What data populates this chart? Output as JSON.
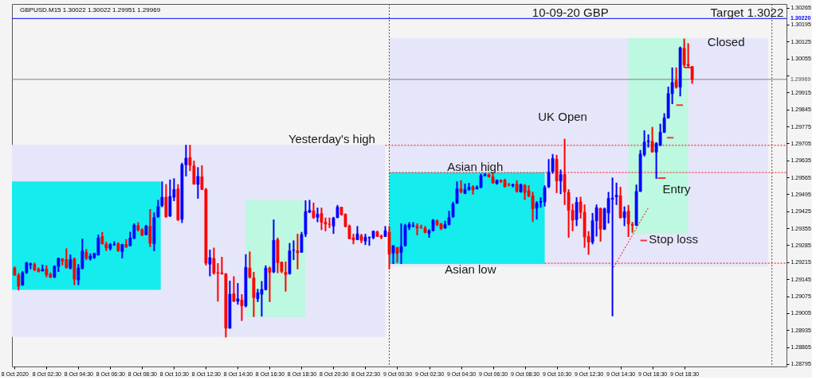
{
  "chart_data": {
    "type": "candlestick",
    "title": "GBPUSD.M15 1.30022 1.30022 1.29951 1.29969",
    "x": [
      "2020-10-08T00:30",
      "2020-10-08T00:45",
      "2020-10-08T01:00",
      "2020-10-08T01:15",
      "2020-10-08T01:30",
      "2020-10-08T01:45",
      "2020-10-08T02:00",
      "2020-10-08T02:15",
      "2020-10-08T02:30",
      "2020-10-08T02:45",
      "2020-10-08T03:00",
      "2020-10-08T03:15",
      "2020-10-08T03:30",
      "2020-10-08T03:45",
      "2020-10-08T04:00",
      "2020-10-08T04:15",
      "2020-10-08T04:30",
      "2020-10-08T04:45",
      "2020-10-08T05:00",
      "2020-10-08T05:15",
      "2020-10-08T05:30",
      "2020-10-08T05:45",
      "2020-10-08T06:00",
      "2020-10-08T06:15",
      "2020-10-08T06:30",
      "2020-10-08T06:45",
      "2020-10-08T07:00",
      "2020-10-08T07:15",
      "2020-10-08T07:30",
      "2020-10-08T07:45",
      "2020-10-08T08:00",
      "2020-10-08T08:15",
      "2020-10-08T08:30",
      "2020-10-08T08:45",
      "2020-10-08T09:00",
      "2020-10-08T09:15",
      "2020-10-08T09:30",
      "2020-10-08T09:45",
      "2020-10-08T10:00",
      "2020-10-08T10:15",
      "2020-10-08T10:30",
      "2020-10-08T10:45",
      "2020-10-08T11:00",
      "2020-10-08T11:15",
      "2020-10-08T11:30",
      "2020-10-08T11:45",
      "2020-10-08T12:00",
      "2020-10-08T12:15",
      "2020-10-08T12:30",
      "2020-10-08T12:45",
      "2020-10-08T13:00",
      "2020-10-08T13:15",
      "2020-10-08T13:30",
      "2020-10-08T13:45",
      "2020-10-08T14:00",
      "2020-10-08T14:15",
      "2020-10-08T14:30",
      "2020-10-08T14:45",
      "2020-10-08T15:00",
      "2020-10-08T15:15",
      "2020-10-08T15:30",
      "2020-10-08T15:45",
      "2020-10-08T16:00",
      "2020-10-08T16:15",
      "2020-10-08T16:30",
      "2020-10-08T16:45",
      "2020-10-08T17:00",
      "2020-10-08T17:15",
      "2020-10-08T17:30",
      "2020-10-08T17:45",
      "2020-10-08T18:00",
      "2020-10-08T18:15",
      "2020-10-08T18:30",
      "2020-10-08T18:45",
      "2020-10-08T19:00",
      "2020-10-08T19:15",
      "2020-10-08T19:30",
      "2020-10-08T19:45",
      "2020-10-08T20:00",
      "2020-10-08T20:15",
      "2020-10-08T20:30",
      "2020-10-08T20:45",
      "2020-10-08T21:00",
      "2020-10-08T21:15",
      "2020-10-08T21:30",
      "2020-10-08T21:45",
      "2020-10-08T22:00",
      "2020-10-08T22:15",
      "2020-10-08T22:30",
      "2020-10-08T22:45",
      "2020-10-08T23:00",
      "2020-10-08T23:15",
      "2020-10-08T23:30",
      "2020-10-08T23:45",
      "2020-10-09T00:00",
      "2020-10-09T00:15",
      "2020-10-09T00:30",
      "2020-10-09T00:45",
      "2020-10-09T01:00",
      "2020-10-09T01:15",
      "2020-10-09T01:30",
      "2020-10-09T01:45",
      "2020-10-09T02:00",
      "2020-10-09T02:15",
      "2020-10-09T02:30",
      "2020-10-09T02:45",
      "2020-10-09T03:00",
      "2020-10-09T03:15",
      "2020-10-09T03:30",
      "2020-10-09T03:45",
      "2020-10-09T04:00",
      "2020-10-09T04:15",
      "2020-10-09T04:30",
      "2020-10-09T04:45",
      "2020-10-09T05:00",
      "2020-10-09T05:15",
      "2020-10-09T05:30",
      "2020-10-09T05:45",
      "2020-10-09T06:00",
      "2020-10-09T06:15",
      "2020-10-09T06:30",
      "2020-10-09T06:45",
      "2020-10-09T07:00",
      "2020-10-09T07:15",
      "2020-10-09T07:30",
      "2020-10-09T07:45",
      "2020-10-09T08:00",
      "2020-10-09T08:15",
      "2020-10-09T08:30",
      "2020-10-09T08:45",
      "2020-10-09T09:00",
      "2020-10-09T09:15",
      "2020-10-09T09:30",
      "2020-10-09T09:45",
      "2020-10-09T10:00",
      "2020-10-09T10:15",
      "2020-10-09T10:30",
      "2020-10-09T10:45",
      "2020-10-09T11:00",
      "2020-10-09T11:15",
      "2020-10-09T11:30",
      "2020-10-09T11:45",
      "2020-10-09T12:00",
      "2020-10-09T12:15",
      "2020-10-09T12:30",
      "2020-10-09T12:45",
      "2020-10-09T13:00",
      "2020-10-09T13:15",
      "2020-10-09T13:30",
      "2020-10-09T13:45",
      "2020-10-09T14:00",
      "2020-10-09T14:15",
      "2020-10-09T14:30",
      "2020-10-09T14:45",
      "2020-10-09T15:00",
      "2020-10-09T15:15",
      "2020-10-09T15:30",
      "2020-10-09T15:45",
      "2020-10-09T16:00",
      "2020-10-09T16:15",
      "2020-10-09T16:30",
      "2020-10-09T16:45",
      "2020-10-09T17:00",
      "2020-10-09T17:15",
      "2020-10-09T17:30",
      "2020-10-09T17:45",
      "2020-10-09T18:00",
      "2020-10-09T18:15",
      "2020-10-09T18:30",
      "2020-10-09T18:45",
      "2020-10-09T19:00"
    ],
    "ohlc": [
      [
        1.29191,
        1.29197,
        1.29159,
        1.29162
      ],
      [
        1.29161,
        1.2917,
        1.29099,
        1.29116
      ],
      [
        1.29121,
        1.29178,
        1.29118,
        1.29172
      ],
      [
        1.29173,
        1.29216,
        1.29167,
        1.29213
      ],
      [
        1.29204,
        1.29213,
        1.29186,
        1.29209
      ],
      [
        1.29206,
        1.29213,
        1.29178,
        1.29184
      ],
      [
        1.29186,
        1.29193,
        1.29173,
        1.29177
      ],
      [
        1.29179,
        1.29205,
        1.29177,
        1.29185
      ],
      [
        1.29187,
        1.29202,
        1.29153,
        1.29163
      ],
      [
        1.29165,
        1.29172,
        1.2915,
        1.29153
      ],
      [
        1.29153,
        1.29202,
        1.2915,
        1.29198
      ],
      [
        1.29197,
        1.29234,
        1.29175,
        1.29231
      ],
      [
        1.29228,
        1.29232,
        1.29202,
        1.2922
      ],
      [
        1.29226,
        1.29272,
        1.29189,
        1.29193
      ],
      [
        1.2919,
        1.29247,
        1.29186,
        1.29227
      ],
      [
        1.29229,
        1.29234,
        1.29121,
        1.29145
      ],
      [
        1.29142,
        1.29207,
        1.29121,
        1.29191
      ],
      [
        1.29189,
        1.29312,
        1.29186,
        1.29261
      ],
      [
        1.29256,
        1.29269,
        1.29224,
        1.29231
      ],
      [
        1.29229,
        1.29251,
        1.29222,
        1.2924
      ],
      [
        1.29234,
        1.29254,
        1.29229,
        1.29251
      ],
      [
        1.29245,
        1.29329,
        1.29243,
        1.29315
      ],
      [
        1.29321,
        1.29339,
        1.29288,
        1.29291
      ],
      [
        1.29289,
        1.29299,
        1.29261,
        1.29274
      ],
      [
        1.29272,
        1.29294,
        1.29264,
        1.29288
      ],
      [
        1.29287,
        1.29301,
        1.29283,
        1.29288
      ],
      [
        1.29291,
        1.29297,
        1.29258,
        1.29262
      ],
      [
        1.29259,
        1.29291,
        1.29231,
        1.29288
      ],
      [
        1.29288,
        1.2931,
        1.29274,
        1.29278
      ],
      [
        1.29283,
        1.2934,
        1.2928,
        1.29315
      ],
      [
        1.29314,
        1.29375,
        1.2931,
        1.29368
      ],
      [
        1.29366,
        1.2938,
        1.29342,
        1.29348
      ],
      [
        1.29349,
        1.29355,
        1.29323,
        1.29326
      ],
      [
        1.29328,
        1.29369,
        1.29326,
        1.29364
      ],
      [
        1.29364,
        1.29434,
        1.29278,
        1.29293
      ],
      [
        1.29291,
        1.2942,
        1.29261,
        1.29399
      ],
      [
        1.29402,
        1.29472,
        1.29399,
        1.29444
      ],
      [
        1.29448,
        1.29548,
        1.29442,
        1.29483
      ],
      [
        1.29483,
        1.29537,
        1.29399,
        1.29402
      ],
      [
        1.29405,
        1.29556,
        1.29402,
        1.29486
      ],
      [
        1.29483,
        1.29561,
        1.29467,
        1.29515
      ],
      [
        1.29517,
        1.29537,
        1.29386,
        1.29389
      ],
      [
        1.29392,
        1.29625,
        1.29377,
        1.29617
      ],
      [
        1.29617,
        1.29699,
        1.29569,
        1.29644
      ],
      [
        1.29647,
        1.29699,
        1.29591,
        1.29615
      ],
      [
        1.29612,
        1.29634,
        1.29535,
        1.29537
      ],
      [
        1.29536,
        1.29607,
        1.29477,
        1.29569
      ],
      [
        1.29567,
        1.29615,
        1.29513,
        1.29515
      ],
      [
        1.29515,
        1.29521,
        1.29202,
        1.29211
      ],
      [
        1.29207,
        1.29267,
        1.29157,
        1.29234
      ],
      [
        1.29231,
        1.29275,
        1.29164,
        1.2917
      ],
      [
        1.29172,
        1.29211,
        1.29053,
        1.2917
      ],
      [
        1.29171,
        1.29237,
        1.29164,
        1.29167
      ],
      [
        1.29167,
        1.2917,
        1.28905,
        1.28943
      ],
      [
        1.28943,
        1.29139,
        1.28941,
        1.29083
      ],
      [
        1.29085,
        1.29157,
        1.29051,
        1.29054
      ],
      [
        1.29054,
        1.29129,
        1.2904,
        1.29064
      ],
      [
        1.29059,
        1.29083,
        1.28973,
        1.29035
      ],
      [
        1.29035,
        1.29248,
        1.29029,
        1.29194
      ],
      [
        1.29191,
        1.29259,
        1.29148,
        1.29153
      ],
      [
        1.2915,
        1.29175,
        1.28989,
        1.29069
      ],
      [
        1.29064,
        1.29105,
        1.29051,
        1.29089
      ],
      [
        1.29083,
        1.29137,
        1.28991,
        1.29103
      ],
      [
        1.29102,
        1.29202,
        1.29099,
        1.29191
      ],
      [
        1.29191,
        1.29197,
        1.29051,
        1.29173
      ],
      [
        1.29175,
        1.29391,
        1.2917,
        1.29305
      ],
      [
        1.29308,
        1.29316,
        1.2917,
        1.29213
      ],
      [
        1.29215,
        1.29218,
        1.2917,
        1.29177
      ],
      [
        1.29173,
        1.29218,
        1.29094,
        1.29164
      ],
      [
        1.29168,
        1.29294,
        1.29164,
        1.29262
      ],
      [
        1.29264,
        1.29305,
        1.29224,
        1.29265
      ],
      [
        1.29262,
        1.29332,
        1.29186,
        1.29254
      ],
      [
        1.29256,
        1.2934,
        1.29254,
        1.29329
      ],
      [
        1.2933,
        1.2947,
        1.29319,
        1.29424
      ],
      [
        1.29421,
        1.29472,
        1.29418,
        1.29429
      ],
      [
        1.29427,
        1.29461,
        1.29394,
        1.29399
      ],
      [
        1.294,
        1.2944,
        1.2938,
        1.29413
      ],
      [
        1.29416,
        1.2944,
        1.29348,
        1.2938
      ],
      [
        1.2938,
        1.29399,
        1.29343,
        1.29373
      ],
      [
        1.29372,
        1.29399,
        1.29356,
        1.29371
      ],
      [
        1.29364,
        1.29402,
        1.29332,
        1.29397
      ],
      [
        1.29399,
        1.29451,
        1.29397,
        1.29442
      ],
      [
        1.29442,
        1.29444,
        1.29407,
        1.29411
      ],
      [
        1.29413,
        1.29416,
        1.29359,
        1.29362
      ],
      [
        1.29364,
        1.2937,
        1.2931,
        1.29312
      ],
      [
        1.29316,
        1.29332,
        1.29289,
        1.29307
      ],
      [
        1.29308,
        1.29364,
        1.29306,
        1.29332
      ],
      [
        1.29324,
        1.29332,
        1.29294,
        1.29305
      ],
      [
        1.29302,
        1.29332,
        1.29286,
        1.29318
      ],
      [
        1.29316,
        1.29321,
        1.29283,
        1.29317
      ],
      [
        1.29316,
        1.29345,
        1.2931,
        1.29343
      ],
      [
        1.2934,
        1.29345,
        1.29319,
        1.29321
      ],
      [
        1.29323,
        1.29329,
        1.2931,
        1.29318
      ],
      [
        1.29321,
        1.29364,
        1.29319,
        1.29345
      ],
      [
        1.29339,
        1.29364,
        1.29186,
        1.29248
      ],
      [
        1.29253,
        1.29285,
        1.29208,
        1.29283
      ],
      [
        1.29275,
        1.29278,
        1.29213,
        1.29251
      ],
      [
        1.29256,
        1.29375,
        1.29208,
        1.2928
      ],
      [
        1.29283,
        1.29373,
        1.29281,
        1.29366
      ],
      [
        1.29359,
        1.2938,
        1.29348,
        1.29371
      ],
      [
        1.29364,
        1.2938,
        1.29359,
        1.29366
      ],
      [
        1.29364,
        1.29375,
        1.29326,
        1.29356
      ],
      [
        1.29358,
        1.2937,
        1.29353,
        1.29357
      ],
      [
        1.29356,
        1.29364,
        1.29335,
        1.29337
      ],
      [
        1.29335,
        1.29351,
        1.29316,
        1.29345
      ],
      [
        1.29345,
        1.29393,
        1.29343,
        1.29389
      ],
      [
        1.29386,
        1.29391,
        1.29364,
        1.2937
      ],
      [
        1.29373,
        1.29377,
        1.29348,
        1.29353
      ],
      [
        1.29356,
        1.29386,
        1.29353,
        1.2937
      ],
      [
        1.2937,
        1.29427,
        1.29367,
        1.29399
      ],
      [
        1.29402,
        1.29464,
        1.29399,
        1.29456
      ],
      [
        1.29458,
        1.29548,
        1.29456,
        1.29518
      ],
      [
        1.29518,
        1.29553,
        1.29499,
        1.29505
      ],
      [
        1.29499,
        1.29539,
        1.29496,
        1.29515
      ],
      [
        1.29515,
        1.29542,
        1.2951,
        1.29524
      ],
      [
        1.29526,
        1.29532,
        1.29494,
        1.29513
      ],
      [
        1.29518,
        1.29532,
        1.29515,
        1.29524
      ],
      [
        1.29523,
        1.2958,
        1.29521,
        1.29572
      ],
      [
        1.29572,
        1.29582,
        1.29569,
        1.29577
      ],
      [
        1.29577,
        1.2958,
        1.29564,
        1.29567
      ],
      [
        1.29567,
        1.29582,
        1.29539,
        1.29542
      ],
      [
        1.29539,
        1.29556,
        1.29535,
        1.29553
      ],
      [
        1.29553,
        1.29556,
        1.29542,
        1.29548
      ],
      [
        1.29553,
        1.29559,
        1.29524,
        1.29526
      ],
      [
        1.29534,
        1.29542,
        1.29528,
        1.29533
      ],
      [
        1.29531,
        1.29539,
        1.29524,
        1.29535
      ],
      [
        1.29537,
        1.29553,
        1.29502,
        1.29507
      ],
      [
        1.29505,
        1.29539,
        1.29502,
        1.29535
      ],
      [
        1.29532,
        1.29537,
        1.29472,
        1.29502
      ],
      [
        1.2951,
        1.29532,
        1.29483,
        1.29489
      ],
      [
        1.29489,
        1.29505,
        1.29381,
        1.29435
      ],
      [
        1.29438,
        1.29467,
        1.29391,
        1.29458
      ],
      [
        1.29462,
        1.29483,
        1.2944,
        1.29465
      ],
      [
        1.29464,
        1.29532,
        1.29445,
        1.29523
      ],
      [
        1.29526,
        1.2964,
        1.29521,
        1.29586
      ],
      [
        1.29589,
        1.29661,
        1.2958,
        1.29643
      ],
      [
        1.2964,
        1.29658,
        1.295,
        1.2955
      ],
      [
        1.2955,
        1.29597,
        1.29496,
        1.29577
      ],
      [
        1.29577,
        1.29724,
        1.29451,
        1.29505
      ],
      [
        1.29503,
        1.29516,
        1.29316,
        1.29429
      ],
      [
        1.29429,
        1.29456,
        1.29343,
        1.29388
      ],
      [
        1.29391,
        1.29483,
        1.29364,
        1.29462
      ],
      [
        1.29464,
        1.29485,
        1.29395,
        1.29421
      ],
      [
        1.29421,
        1.29453,
        1.29275,
        1.29319
      ],
      [
        1.29321,
        1.29343,
        1.29246,
        1.29298
      ],
      [
        1.29298,
        1.29418,
        1.29289,
        1.29386
      ],
      [
        1.29386,
        1.29453,
        1.29321,
        1.2944
      ],
      [
        1.29437,
        1.2944,
        1.293,
        1.29351
      ],
      [
        1.29351,
        1.2944,
        1.29348,
        1.29435
      ],
      [
        1.29418,
        1.29505,
        1.29375,
        1.29478
      ],
      [
        1.29475,
        1.29564,
        1.28992,
        1.2948
      ],
      [
        1.29485,
        1.29543,
        1.29451,
        1.29491
      ],
      [
        1.29489,
        1.29526,
        1.29395,
        1.29399
      ],
      [
        1.29399,
        1.29445,
        1.29364,
        1.29423
      ],
      [
        1.29426,
        1.29451,
        1.29319,
        1.29373
      ],
      [
        1.2937,
        1.29381,
        1.29337,
        1.29367
      ],
      [
        1.29368,
        1.29535,
        1.29364,
        1.29507
      ],
      [
        1.29507,
        1.29678,
        1.29505,
        1.29661
      ],
      [
        1.29659,
        1.29759,
        1.29651,
        1.2971
      ],
      [
        1.29712,
        1.29742,
        1.29688,
        1.29715
      ],
      [
        1.29713,
        1.29773,
        1.29667,
        1.2967
      ],
      [
        1.29669,
        1.2971,
        1.29559,
        1.29705
      ],
      [
        1.29697,
        1.29786,
        1.29694,
        1.29751
      ],
      [
        1.29751,
        1.29829,
        1.29748,
        1.2981
      ],
      [
        1.2981,
        1.29939,
        1.29807,
        1.2991
      ],
      [
        1.2991,
        1.30018,
        1.29867,
        1.29956
      ],
      [
        1.29964,
        1.30018,
        1.29931,
        1.29937
      ],
      [
        1.29937,
        1.30104,
        1.29899,
        1.30099
      ],
      [
        1.30097,
        1.30137,
        1.30018,
        1.30029
      ],
      [
        1.30031,
        1.30118,
        1.30018,
        1.30026
      ],
      [
        1.30022,
        1.30022,
        1.29951,
        1.29969
      ]
    ],
    "colors": [
      "#ff0000",
      "#ff0000",
      "#0000ff",
      "#0000ff",
      "#0000ff",
      "#ff0000",
      "#ff0000",
      "#0000ff",
      "#ff0000",
      "#ff0000",
      "#0000ff",
      "#0000ff",
      "#ff0000",
      "#ff0000",
      "#0000ff",
      "#ff0000",
      "#0000ff",
      "#0000ff",
      "#ff0000",
      "#0000ff",
      "#0000ff",
      "#0000ff",
      "#ff0000",
      "#ff0000",
      "#0000ff",
      "#0000ff",
      "#ff0000",
      "#0000ff",
      "#ff0000",
      "#0000ff",
      "#0000ff",
      "#ff0000",
      "#ff0000",
      "#0000ff",
      "#ff0000",
      "#0000ff",
      "#0000ff",
      "#0000ff",
      "#ff0000",
      "#0000ff",
      "#0000ff",
      "#ff0000",
      "#0000ff",
      "#0000ff",
      "#ff0000",
      "#ff0000",
      "#0000ff",
      "#ff0000",
      "#ff0000",
      "#0000ff",
      "#ff0000",
      "#ff0000",
      "#ff0000",
      "#ff0000",
      "#0000ff",
      "#ff0000",
      "#0000ff",
      "#ff0000",
      "#0000ff",
      "#ff0000",
      "#ff0000",
      "#0000ff",
      "#0000ff",
      "#0000ff",
      "#ff0000",
      "#0000ff",
      "#ff0000",
      "#ff0000",
      "#ff0000",
      "#0000ff",
      "#0000ff",
      "#ff0000",
      "#0000ff",
      "#0000ff",
      "#0000ff",
      "#ff0000",
      "#0000ff",
      "#ff0000",
      "#ff0000",
      "#ff0000",
      "#0000ff",
      "#0000ff",
      "#ff0000",
      "#ff0000",
      "#ff0000",
      "#ff0000",
      "#0000ff",
      "#ff0000",
      "#0000ff",
      "#0000ff",
      "#0000ff",
      "#ff0000",
      "#ff0000",
      "#0000ff",
      "#ff0000",
      "#0000ff",
      "#ff0000",
      "#0000ff",
      "#0000ff",
      "#0000ff",
      "#0000ff",
      "#ff0000",
      "#ff0000",
      "#ff0000",
      "#0000ff",
      "#0000ff",
      "#ff0000",
      "#ff0000",
      "#0000ff",
      "#0000ff",
      "#0000ff",
      "#0000ff",
      "#ff0000",
      "#0000ff",
      "#0000ff",
      "#ff0000",
      "#0000ff",
      "#0000ff",
      "#0000ff",
      "#ff0000",
      "#ff0000",
      "#0000ff",
      "#ff0000",
      "#ff0000",
      "#ff0000",
      "#0000ff",
      "#ff0000",
      "#0000ff",
      "#ff0000",
      "#ff0000",
      "#ff0000",
      "#0000ff",
      "#0000ff",
      "#0000ff",
      "#0000ff",
      "#0000ff",
      "#ff0000",
      "#0000ff",
      "#ff0000",
      "#ff0000",
      "#ff0000",
      "#0000ff",
      "#ff0000",
      "#ff0000",
      "#ff0000",
      "#0000ff",
      "#0000ff",
      "#ff0000",
      "#0000ff",
      "#0000ff",
      "#0000ff",
      "#0000ff",
      "#ff0000",
      "#0000ff",
      "#ff0000",
      "#ff0000",
      "#0000ff",
      "#0000ff",
      "#0000ff",
      "#0000ff",
      "#ff0000",
      "#0000ff",
      "#0000ff",
      "#0000ff",
      "#0000ff",
      "#0000ff",
      "#ff0000",
      "#0000ff",
      "#ff0000",
      "#ff0000",
      "#ff0000"
    ],
    "xlim": [
      "2020-10-08T00:20",
      "2020-10-10T00:55"
    ],
    "ylim": [
      1.28785,
      1.3028
    ],
    "xticks": [
      {
        "value": "2020-10-08T00:30",
        "label": "8 Oct 2020"
      },
      {
        "value": "2020-10-08T02:30",
        "label": "8 Oct 02:30"
      },
      {
        "value": "2020-10-08T04:30",
        "label": "8 Oct 04:30"
      },
      {
        "value": "2020-10-08T06:30",
        "label": "8 Oct 06:30"
      },
      {
        "value": "2020-10-08T08:30",
        "label": "8 Oct 08:30"
      },
      {
        "value": "2020-10-08T10:30",
        "label": "8 Oct 10:30"
      },
      {
        "value": "2020-10-08T12:30",
        "label": "8 Oct 12:30"
      },
      {
        "value": "2020-10-08T14:30",
        "label": "8 Oct 14:30"
      },
      {
        "value": "2020-10-08T16:30",
        "label": "8 Oct 16:30"
      },
      {
        "value": "2020-10-08T18:30",
        "label": "8 Oct 18:30"
      },
      {
        "value": "2020-10-08T20:30",
        "label": "8 Oct 20:30"
      },
      {
        "value": "2020-10-08T22:30",
        "label": "8 Oct 22:30"
      },
      {
        "value": "2020-10-09T00:30",
        "label": "9 Oct 00:30"
      },
      {
        "value": "2020-10-09T02:30",
        "label": "9 Oct 02:30"
      },
      {
        "value": "2020-10-09T04:30",
        "label": "9 Oct 04:30"
      },
      {
        "value": "2020-10-09T06:30",
        "label": "9 Oct 06:30"
      },
      {
        "value": "2020-10-09T08:30",
        "label": "9 Oct 08:30"
      },
      {
        "value": "2020-10-09T10:30",
        "label": "9 Oct 10:30"
      },
      {
        "value": "2020-10-09T12:30",
        "label": "9 Oct 12:30"
      },
      {
        "value": "2020-10-09T14:30",
        "label": "9 Oct 14:30"
      },
      {
        "value": "2020-10-09T16:30",
        "label": "9 Oct 16:30"
      },
      {
        "value": "2020-10-09T18:30",
        "label": "9 Oct 18:30"
      }
    ],
    "yticks": [
      1.28795,
      1.28865,
      1.28935,
      1.29005,
      1.29075,
      1.29145,
      1.29215,
      1.29285,
      1.29355,
      1.29425,
      1.29495,
      1.29565,
      1.29635,
      1.29705,
      1.29775,
      1.29845,
      1.29915,
      {
        "value": 1.29985,
        "label": null
      },
      1.30055,
      1.30125,
      1.30195,
      1.30265
    ],
    "series": [
      {
        "type": "area",
        "x": [
          "2020-10-08T00:20",
          "2020-10-08T23:45"
        ],
        "values": [
          null,
          null
        ],
        "upper": [
          1.29699,
          1.29699
        ],
        "lower": [
          1.28907,
          1.28907
        ],
        "color": "#e6e6fa"
      },
      {
        "type": "area",
        "x": [
          "2020-10-08T00:20",
          "2020-10-08T09:40"
        ],
        "values": [
          null,
          null
        ],
        "upper": [
          1.29548,
          1.29548
        ],
        "lower": [
          1.29101,
          1.29101
        ],
        "color": "#14ecee"
      },
      {
        "type": "area",
        "x": [
          "2020-10-08T15:00",
          "2020-10-08T18:45"
        ],
        "values": [
          null,
          null
        ],
        "upper": [
          1.2947,
          1.2947
        ],
        "lower": [
          1.28989,
          1.28989
        ],
        "color": "#bdf8e0"
      },
      {
        "type": "area",
        "x": [
          "2020-10-09T00:00",
          "2020-10-09T23:45"
        ],
        "values": [
          null,
          null
        ],
        "upper": [
          1.30139,
          1.30139
        ],
        "lower": [
          1.29197,
          1.29197
        ],
        "color": "#e6e6fa"
      },
      {
        "type": "area",
        "x": [
          "2020-10-09T00:00",
          "2020-10-09T09:45"
        ],
        "values": [
          null,
          null
        ],
        "upper": [
          1.29585,
          1.29585
        ],
        "lower": [
          1.29208,
          1.29208
        ],
        "color": "#14ecee"
      },
      {
        "type": "area",
        "x": [
          "2020-10-09T15:00",
          "2020-10-09T18:45"
        ],
        "values": [
          null,
          null
        ],
        "upper": [
          1.30139,
          1.30139
        ],
        "lower": [
          1.29332,
          1.29332
        ],
        "color": "#bdf8e0"
      },
      {
        "type": "line",
        "x": [
          "2020-10-08T23:45",
          "2020-10-10T00:55"
        ],
        "values": [
          1.29697,
          1.29697
        ],
        "color": "#ff0000",
        "line_style": "dotted"
      },
      {
        "type": "line",
        "x": [
          "2020-10-09T00:00",
          "2020-10-10T00:55"
        ],
        "values": [
          1.29585,
          1.29585
        ],
        "color": "#ff0000",
        "line_style": "dotted"
      },
      {
        "type": "line",
        "x": [
          "2020-10-09T09:45",
          "2020-10-10T00:55"
        ],
        "values": [
          1.29211,
          1.29211
        ],
        "color": "#ff0000",
        "line_style": "dotted"
      },
      {
        "type": "line",
        "x": [
          "2020-10-09T14:05",
          "2020-10-09T16:15"
        ],
        "values": [
          1.29194,
          1.2944
        ],
        "color": "#ff0000",
        "line_style": "dotted"
      },
      {
        "type": "line",
        "x": [
          "2020-10-09T15:45",
          "2020-10-09T16:10",
          "2020-10-09T16:30",
          "2020-10-09T16:50",
          "2020-10-09T17:20",
          "2020-10-09T17:22",
          "2020-10-09T17:25",
          "2020-10-09T17:50",
          "2020-10-09T17:55",
          "2020-10-09T18:00",
          "2020-10-09T18:25",
          "2020-10-09T18:27",
          "2020-10-09T18:30",
          "2020-10-09T19:00"
        ],
        "values": [
          1.29305,
          1.29305,
          null,
          1.29562,
          1.29562,
          null,
          1.29728,
          1.29728,
          null,
          1.29863,
          1.29863,
          null,
          1.30018,
          1.30018
        ],
        "color": "#f03c3c",
        "line_style": "solid"
      }
    ],
    "ref_lines": [
      {
        "axis": "x",
        "value": "2020-10-09T00:00",
        "color": "#555555",
        "line_style": "dotted"
      },
      {
        "axis": "x",
        "value": "2020-10-10T00:00",
        "color": "#555555",
        "line_style": "dotted"
      },
      {
        "axis": "y",
        "value": 1.3022,
        "label": "1.30220",
        "color": "#0000ff",
        "line_style": "solid"
      },
      {
        "axis": "y",
        "value": 1.29969,
        "label": "1.29969",
        "color": "#808080",
        "line_style": "solid"
      }
    ],
    "annotations": [
      "10-09-20 GBP",
      "Target 1.3022",
      "Yesterday's high",
      "Asian high",
      "Asian low",
      "UK Open",
      "Entry",
      "Stop loss",
      "Closed"
    ]
  }
}
